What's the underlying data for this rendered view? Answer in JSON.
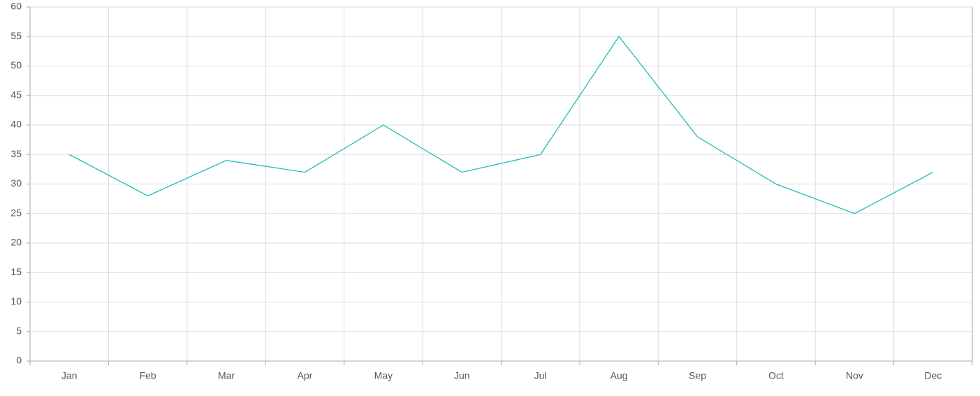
{
  "chart_data": {
    "type": "line",
    "categories": [
      "Jan",
      "Feb",
      "Mar",
      "Apr",
      "May",
      "Jun",
      "Jul",
      "Aug",
      "Sep",
      "Oct",
      "Nov",
      "Dec"
    ],
    "values": [
      35,
      28,
      34,
      32,
      40,
      32,
      35,
      55,
      38,
      30,
      25,
      32
    ],
    "color": "#1fbdb5",
    "ylim": [
      0,
      60
    ],
    "yticks": [
      0,
      5,
      10,
      15,
      20,
      25,
      30,
      35,
      40,
      45,
      50,
      55,
      60
    ],
    "grid": true
  }
}
